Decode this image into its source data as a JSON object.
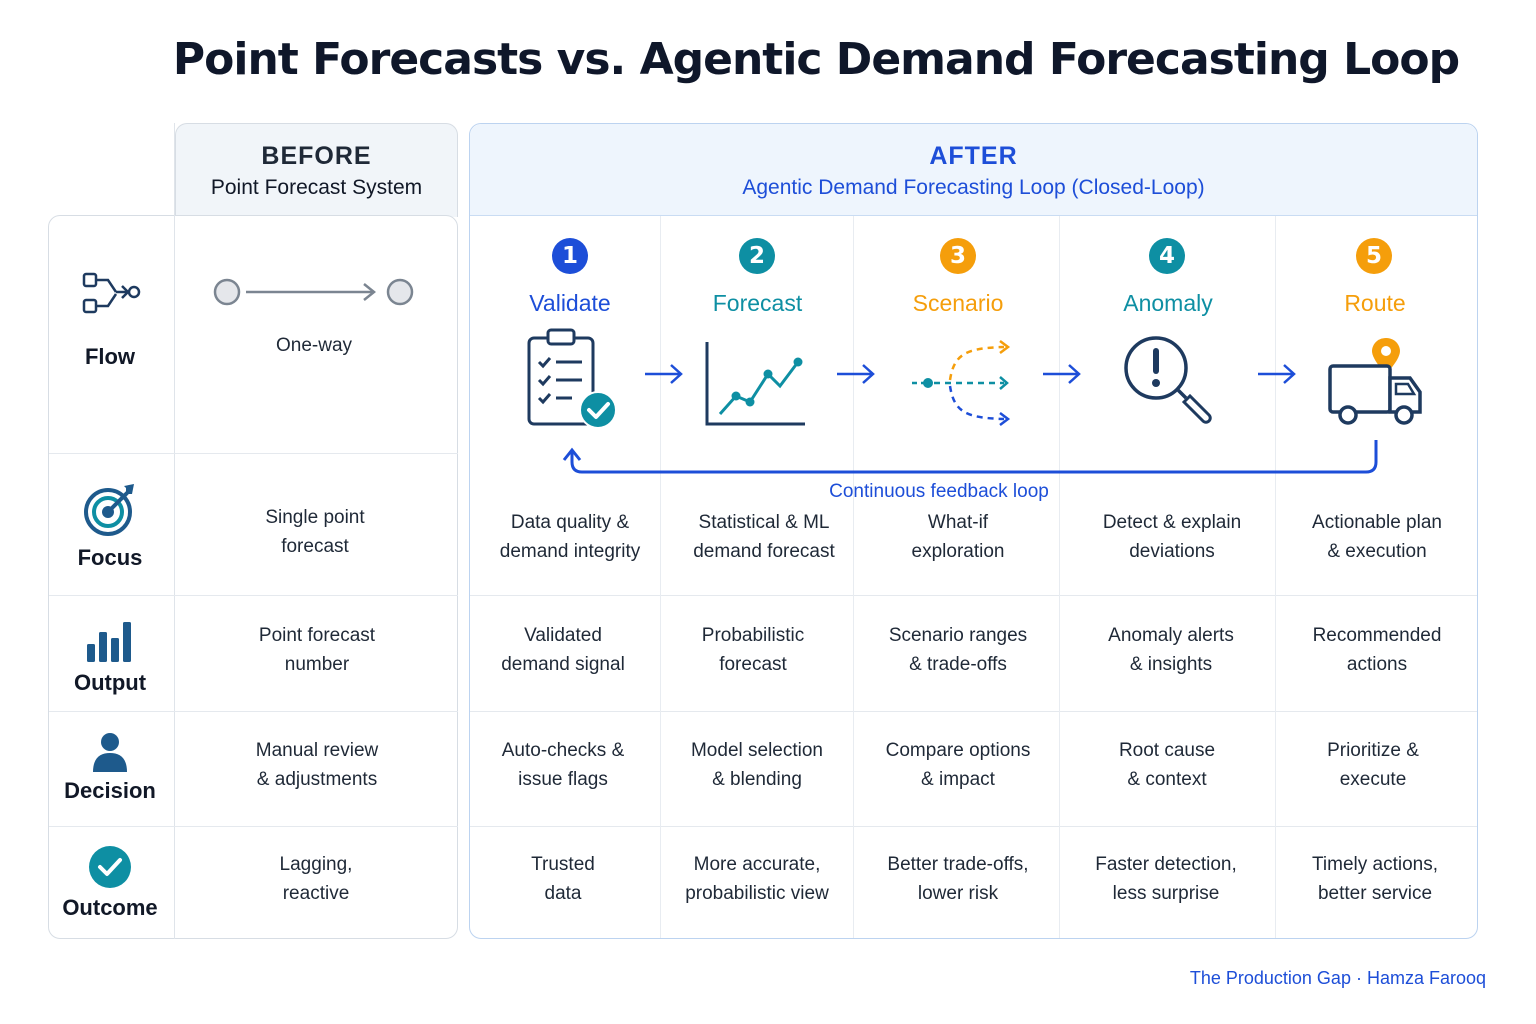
{
  "title": "Point Forecasts vs. Agentic Demand Forecasting Loop",
  "before": {
    "heading": "BEFORE",
    "subheading": "Point Forecast System"
  },
  "after": {
    "heading": "AFTER",
    "subheading": "Agentic Demand Forecasting Loop (Closed-Loop)"
  },
  "rows": [
    {
      "label": "Flow",
      "icon": "flow-icon"
    },
    {
      "label": "Focus",
      "icon": "target-icon"
    },
    {
      "label": "Output",
      "icon": "bar-chart-icon"
    },
    {
      "label": "Decision",
      "icon": "person-icon"
    },
    {
      "label": "Outcome",
      "icon": "check-circle-icon"
    }
  ],
  "before_cells": {
    "flow": "One-way",
    "focus": [
      "Single point",
      "forecast"
    ],
    "output": [
      "Point forecast",
      "number"
    ],
    "decision": [
      "Manual review",
      "& adjustments"
    ],
    "outcome": [
      "Lagging,",
      "reactive"
    ]
  },
  "steps": [
    {
      "num": "1",
      "name": "Validate",
      "color": "#1d4ed8",
      "icon": "clipboard-check-icon",
      "focus": [
        "Data quality &",
        "demand integrity"
      ],
      "output": [
        "Validated",
        "demand signal"
      ],
      "decision": [
        "Auto-checks &",
        "issue flags"
      ],
      "outcome": [
        "Trusted",
        "data"
      ]
    },
    {
      "num": "2",
      "name": "Forecast",
      "color": "#0e8fa3",
      "icon": "line-chart-icon",
      "focus": [
        "Statistical & ML",
        "demand forecast"
      ],
      "output": [
        "Probabilistic",
        "forecast"
      ],
      "decision": [
        "Model selection",
        "& blending"
      ],
      "outcome": [
        "More accurate,",
        "probabilistic view"
      ]
    },
    {
      "num": "3",
      "name": "Scenario",
      "color": "#f59e0b",
      "icon": "branching-arrows-icon",
      "focus": [
        "What-if",
        "exploration"
      ],
      "output": [
        "Scenario ranges",
        "& trade-offs"
      ],
      "decision": [
        "Compare options",
        "& impact"
      ],
      "outcome": [
        "Better trade-offs,",
        "lower risk"
      ]
    },
    {
      "num": "4",
      "name": "Anomaly",
      "color": "#0e8fa3",
      "icon": "magnifier-alert-icon",
      "focus": [
        "Detect & explain",
        "deviations"
      ],
      "output": [
        "Anomaly alerts",
        "& insights"
      ],
      "decision": [
        "Root cause",
        "& context"
      ],
      "outcome": [
        "Faster detection,",
        "less surprise"
      ]
    },
    {
      "num": "5",
      "name": "Route",
      "color": "#f59e0b",
      "icon": "truck-pin-icon",
      "focus": [
        "Actionable plan",
        "& execution"
      ],
      "output": [
        "Recommended",
        "actions"
      ],
      "decision": [
        "Prioritize &",
        "execute"
      ],
      "outcome": [
        "Timely actions,",
        "better service"
      ]
    }
  ],
  "feedback_loop_label": "Continuous feedback loop",
  "credit": "The Production Gap · Hamza Farooq",
  "colors": {
    "navy": "#1e3a5f",
    "blue": "#1d4ed8",
    "teal": "#0e8fa3",
    "orange": "#f59e0b"
  }
}
